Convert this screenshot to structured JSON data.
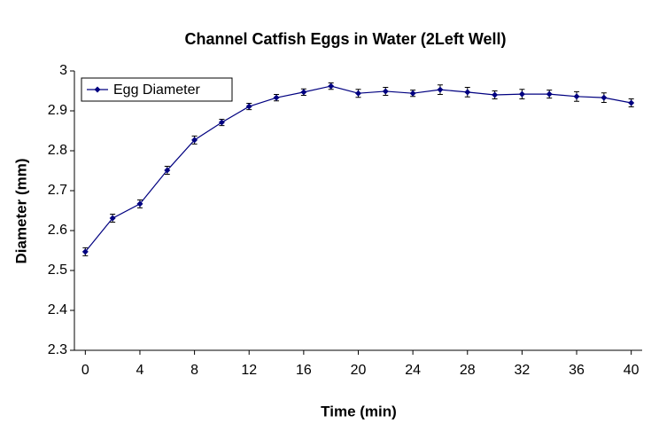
{
  "chart_data": {
    "type": "line",
    "title": "Channel Catfish Eggs in Water (2Left Well)",
    "x_label": "Time (min)",
    "y_label": "Diameter (mm)",
    "x": [
      0,
      2,
      4,
      6,
      8,
      10,
      12,
      14,
      16,
      18,
      20,
      22,
      24,
      26,
      28,
      30,
      32,
      34,
      36,
      38,
      40
    ],
    "series": [
      {
        "name": "Egg Diameter",
        "color": "#000080",
        "values": [
          2.547,
          2.631,
          2.667,
          2.751,
          2.827,
          2.871,
          2.911,
          2.933,
          2.947,
          2.962,
          2.944,
          2.949,
          2.944,
          2.953,
          2.947,
          2.94,
          2.942,
          2.942,
          2.936,
          2.933,
          2.92
        ],
        "errors": [
          0.01,
          0.01,
          0.01,
          0.01,
          0.01,
          0.008,
          0.008,
          0.008,
          0.008,
          0.008,
          0.01,
          0.01,
          0.008,
          0.012,
          0.012,
          0.01,
          0.012,
          0.01,
          0.012,
          0.012,
          0.01
        ]
      }
    ],
    "xlim": [
      -0.8,
      40.8
    ],
    "xticks": [
      0,
      4,
      8,
      12,
      16,
      20,
      24,
      28,
      32,
      36,
      40
    ],
    "ylim": [
      2.3,
      3
    ],
    "yticks": [
      2.3,
      2.4,
      2.5,
      2.6,
      2.7,
      2.8,
      2.9,
      3
    ],
    "legend": "top-left"
  }
}
